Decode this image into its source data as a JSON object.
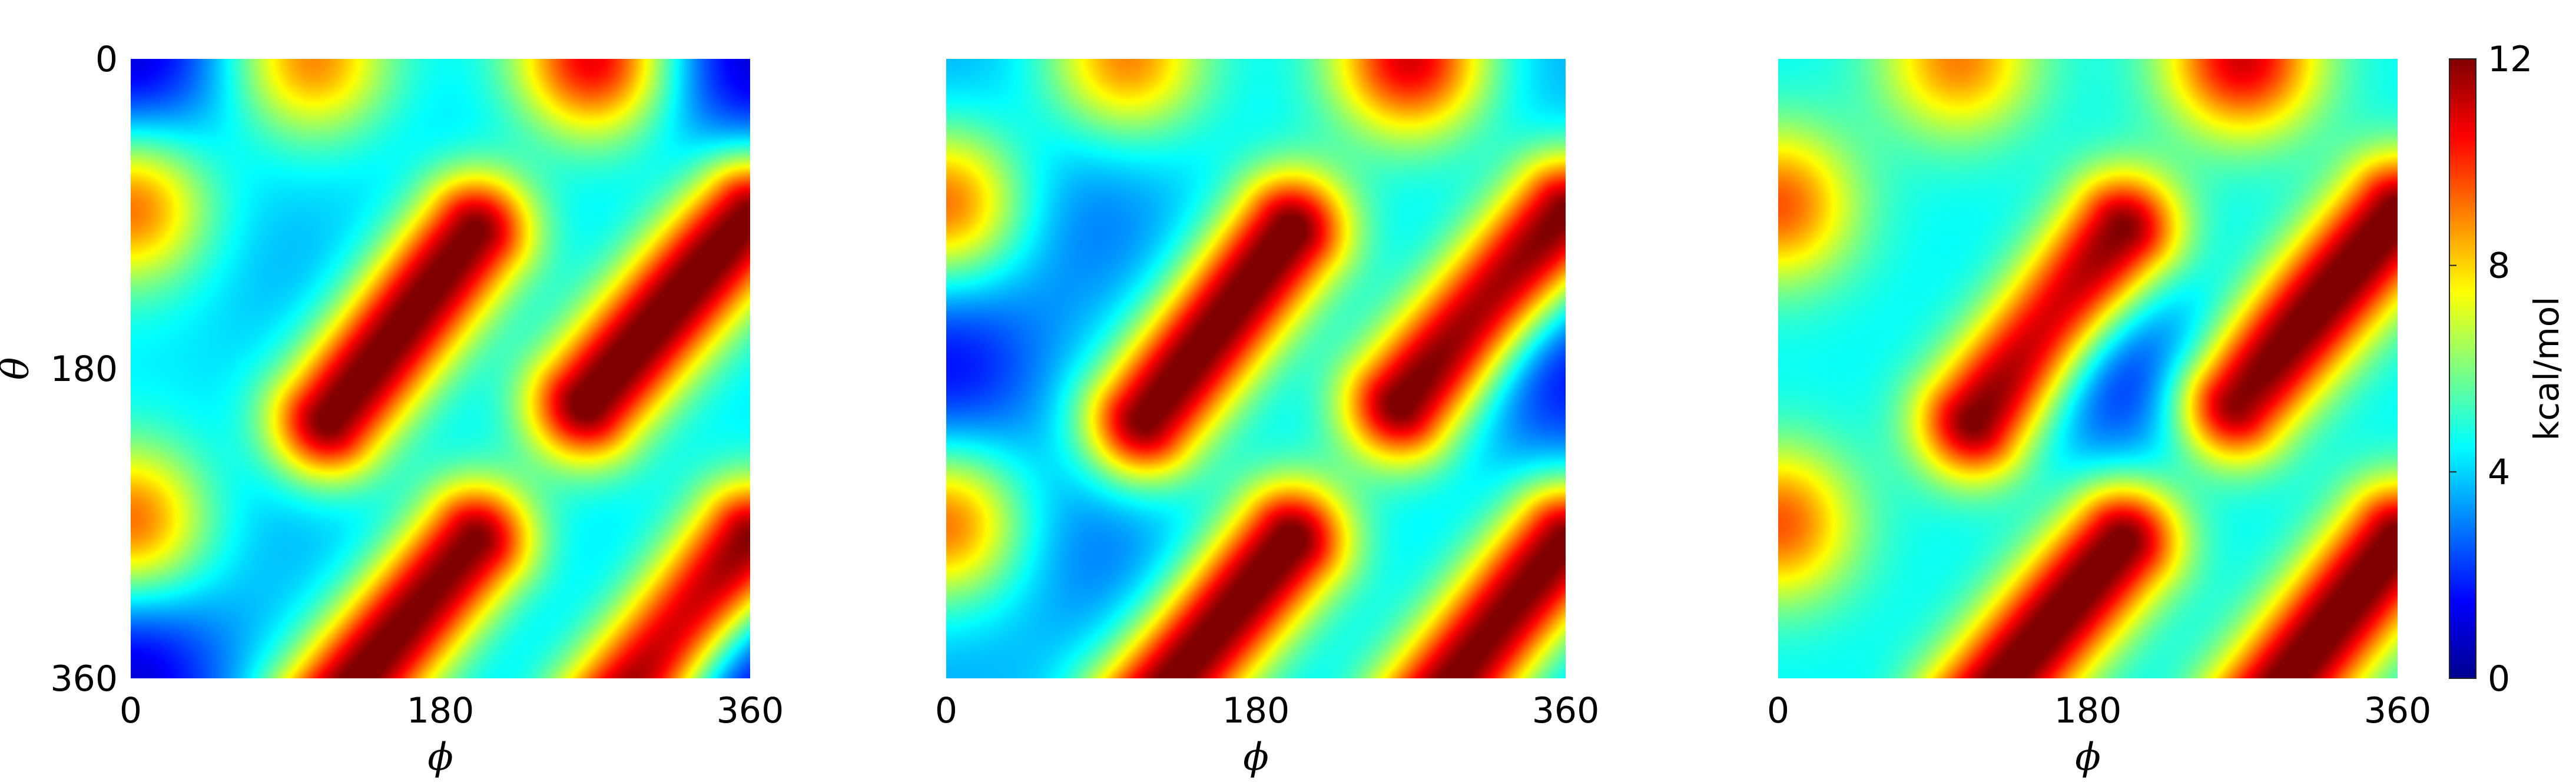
{
  "chart_data": {
    "type": "heatmap",
    "colormap": "jet",
    "grid": false,
    "xlabel": "ϕ",
    "ylabel": "θ",
    "xlim": [
      0,
      360
    ],
    "ylim": [
      0,
      360
    ],
    "y_reversed": true,
    "xticks": [
      "0",
      "180",
      "360"
    ],
    "yticks": [
      "0",
      "180",
      "360"
    ],
    "colorbar": {
      "label": "kcal/mol",
      "range": [
        0,
        12
      ],
      "ticks": [
        "0",
        "4",
        "8",
        "12"
      ]
    },
    "panels": [
      {
        "name": "panel-1",
        "background": 4.3,
        "wells": [
          {
            "x": 0,
            "y": 0,
            "value": 1.0
          },
          {
            "x": 360,
            "y": 0,
            "value": 1.0
          },
          {
            "x": 0,
            "y": 360,
            "value": 1.0
          },
          {
            "x": 360,
            "y": 360,
            "value": 1.0
          },
          {
            "x": 90,
            "y": 120,
            "value": 3.7
          },
          {
            "x": 90,
            "y": 270,
            "value": 3.7
          },
          {
            "x": 200,
            "y": 70,
            "value": 3.9
          },
          {
            "x": 200,
            "y": 300,
            "value": 3.9
          }
        ]
      },
      {
        "name": "panel-2",
        "background": 4.3,
        "wells": [
          {
            "x": 0,
            "y": 180,
            "value": 1.6
          },
          {
            "x": 360,
            "y": 180,
            "value": 1.6
          },
          {
            "x": 85,
            "y": 95,
            "value": 3.0
          },
          {
            "x": 85,
            "y": 285,
            "value": 3.0
          },
          {
            "x": 0,
            "y": 0,
            "value": 3.6
          },
          {
            "x": 360,
            "y": 0,
            "value": 3.6
          },
          {
            "x": 0,
            "y": 360,
            "value": 3.6
          },
          {
            "x": 360,
            "y": 360,
            "value": 3.6
          }
        ]
      },
      {
        "name": "panel-3",
        "background": 4.5,
        "wells": [
          {
            "x": 195,
            "y": 180,
            "value": 1.6
          }
        ]
      }
    ],
    "shared_features": {
      "ridges": [
        {
          "from": [
            115,
            210
          ],
          "to": [
            200,
            100
          ],
          "value": 12.5
        },
        {
          "from": [
            265,
            200
          ],
          "to": [
            360,
            90
          ],
          "value": 12.5
        },
        {
          "from": [
            115,
            380
          ],
          "to": [
            200,
            280
          ],
          "value": 12.5
        },
        {
          "from": [
            280,
            380
          ],
          "to": [
            360,
            280
          ],
          "value": 12.5
        }
      ],
      "bumps": [
        {
          "x": 0,
          "y": 85,
          "value": 9.5
        },
        {
          "x": 0,
          "y": 270,
          "value": 9.5
        },
        {
          "x": 105,
          "y": 0,
          "value": 9.0
        },
        {
          "x": 270,
          "y": 0,
          "value": 11.0
        }
      ]
    }
  }
}
